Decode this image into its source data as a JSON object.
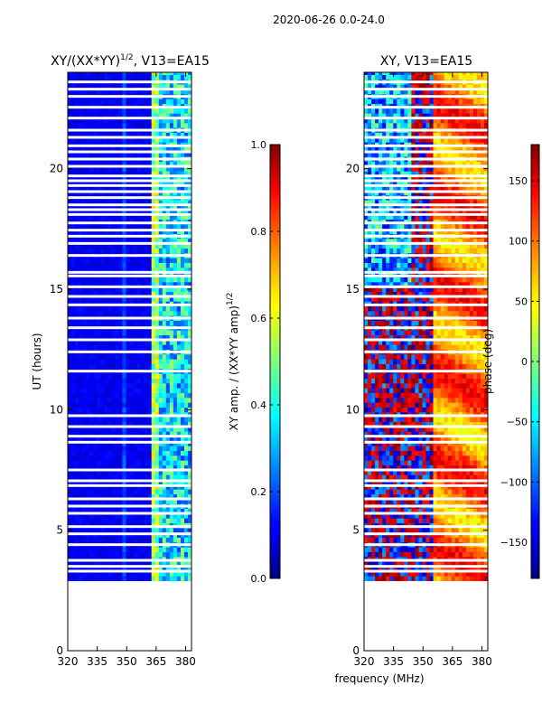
{
  "page": {
    "suptitle": "2020-06-26 0.0-24.0",
    "shared_xlabel": "frequency (MHz)"
  },
  "chart_data": [
    {
      "type": "heatmap",
      "title_main": "XY/(XX*YY)",
      "title_sup": "1/2",
      "title_tail": ", V13=EA15",
      "xlabel": "",
      "ylabel": "UT (hours)",
      "xlim": [
        320,
        383
      ],
      "ylim": [
        0,
        24
      ],
      "xticks": [
        320,
        335,
        350,
        365,
        380
      ],
      "yticks": [
        0,
        5,
        10,
        15,
        20
      ],
      "data_start_hour": 2.9,
      "colorbar": {
        "label_main": "XY amp. / (XX*YY amp)",
        "label_sup": "1/2",
        "range": [
          0.0,
          1.0
        ],
        "ticks": [
          0.0,
          0.2,
          0.4,
          0.6,
          0.8,
          1.0
        ],
        "tick_labels": [
          "0.0",
          "0.2",
          "0.4",
          "0.6",
          "0.8",
          "1.0"
        ]
      }
    },
    {
      "type": "heatmap",
      "title_main": "XY, V13=EA15",
      "title_sup": "",
      "title_tail": "",
      "xlabel": "frequency (MHz)",
      "ylabel": "",
      "xlim": [
        320,
        383
      ],
      "ylim": [
        0,
        24
      ],
      "xticks": [
        320,
        335,
        350,
        365,
        380
      ],
      "yticks": [
        0,
        5,
        10,
        15,
        20
      ],
      "data_start_hour": 2.9,
      "colorbar": {
        "label_main": "phase (deg)",
        "label_sup": "",
        "range": [
          -180,
          180
        ],
        "ticks": [
          -150,
          -100,
          -50,
          0,
          50,
          100,
          150
        ],
        "tick_labels": [
          "−150",
          "−100",
          "−50",
          "0",
          "50",
          "100",
          "150"
        ]
      }
    }
  ],
  "flagged_hours": [
    3.3,
    3.5,
    3.75,
    4.4,
    4.85,
    5.15,
    5.7,
    6.0,
    6.3,
    6.85,
    7.05,
    7.5,
    8.65,
    8.9,
    9.3,
    9.75,
    11.6,
    12.4,
    12.9,
    13.4,
    13.8,
    14.35,
    14.7,
    15.1,
    15.55,
    15.7,
    16.4,
    16.9,
    17.2,
    17.45,
    17.75,
    18.1,
    18.3,
    18.5,
    18.8,
    19.05,
    19.3,
    19.5,
    19.7,
    20.1,
    20.4,
    20.7,
    20.95,
    21.3,
    21.6,
    22.1,
    22.55,
    23.0,
    23.3,
    23.6
  ]
}
